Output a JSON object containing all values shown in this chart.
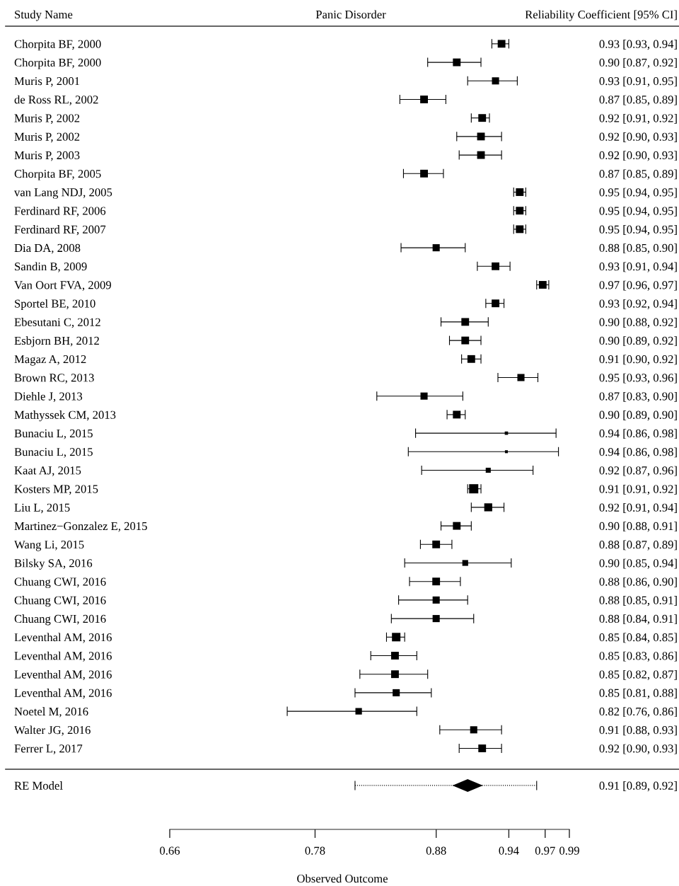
{
  "chart_data": {
    "type": "bubble",
    "orientation": "horizontal",
    "title": "Panic Disorder",
    "ylabel": "Study Name",
    "xlabel": "Observed Outcome",
    "annotations": [
      "Reliability Coefficient [95% CI]",
      "0.91 [0.89, 0.92]"
    ],
    "categories": [
      "Chorpita BF, 2000",
      "Chorpita BF, 2000",
      "Muris P, 2001",
      "de Ross RL, 2002",
      "Muris P, 2002",
      "Muris P, 2002",
      "Muris P, 2003",
      "Chorpita BF, 2005",
      "van Lang NDJ, 2005",
      "Ferdinard RF, 2006",
      "Ferdinard RF, 2007",
      "Dia DA, 2008",
      "Sandin B, 2009",
      "Van Oort FVA, 2009",
      "Sportel BE, 2010",
      "Ebesutani C, 2012",
      "Esbjorn BH, 2012",
      "Magaz A, 2012",
      "Brown RC, 2013",
      "Diehle J, 2013",
      "Mathyssek CM, 2013",
      "Bunaciu L, 2015",
      "Bunaciu L, 2015",
      "Kaat AJ, 2015",
      "Kosters MP, 2015",
      "Liu L, 2015",
      "Martinez−Gonzalez E, 2015",
      "Wang Li, 2015",
      "Bilsky SA, 2016",
      "Chuang CWI, 2016",
      "Chuang CWI, 2016",
      "Chuang CWI, 2016",
      "Leventhal AM, 2016",
      "Leventhal AM, 2016",
      "Leventhal AM, 2016",
      "Leventhal AM, 2016",
      "Noetel M, 2016",
      "Walter JG, 2016",
      "Ferrer L, 2017",
      null,
      "RE Model"
    ],
    "series": [
      {
        "color": "#000000",
        "marker": "square",
        "values": [
          0.934,
          0.897,
          0.929,
          0.87,
          0.918,
          0.917,
          0.917,
          0.87,
          0.949,
          0.949,
          0.949,
          0.88,
          0.929,
          0.968,
          0.929,
          0.904,
          0.904,
          0.909,
          0.95,
          0.87,
          0.897,
          0.938,
          0.938,
          0.923,
          0.911,
          0.923,
          0.897,
          0.88,
          0.904,
          0.88,
          0.88,
          0.88,
          0.847,
          0.846,
          0.846,
          0.847,
          0.816,
          0.911,
          0.918,
          null,
          null
        ],
        "errors": [
          [
            0.926,
            0.94
          ],
          [
            0.873,
            0.917
          ],
          [
            0.906,
            0.947
          ],
          [
            0.85,
            0.888
          ],
          [
            0.909,
            0.924
          ],
          [
            0.897,
            0.934
          ],
          [
            0.899,
            0.934
          ],
          [
            0.853,
            0.886
          ],
          [
            0.944,
            0.954
          ],
          [
            0.944,
            0.954
          ],
          [
            0.944,
            0.954
          ],
          [
            0.851,
            0.904
          ],
          [
            0.914,
            0.941
          ],
          [
            0.963,
            0.973
          ],
          [
            0.921,
            0.936
          ],
          [
            0.884,
            0.923
          ],
          [
            0.891,
            0.917
          ],
          [
            0.901,
            0.917
          ],
          [
            0.931,
            0.964
          ],
          [
            0.831,
            0.902
          ],
          [
            0.889,
            0.904
          ],
          [
            0.863,
            0.979
          ],
          [
            0.857,
            0.981
          ],
          [
            0.868,
            0.96
          ],
          [
            0.906,
            0.917
          ],
          [
            0.909,
            0.936
          ],
          [
            0.884,
            0.909
          ],
          [
            0.867,
            0.893
          ],
          [
            0.854,
            0.942
          ],
          [
            0.858,
            0.9
          ],
          [
            0.849,
            0.906
          ],
          [
            0.843,
            0.911
          ],
          [
            0.839,
            0.854
          ],
          [
            0.826,
            0.864
          ],
          [
            0.817,
            0.873
          ],
          [
            0.813,
            0.876
          ],
          [
            0.757,
            0.864
          ],
          [
            0.883,
            0.934
          ],
          [
            0.899,
            0.934
          ],
          null,
          null
        ],
        "sizes": [
          0.7,
          0.7,
          0.6,
          0.7,
          0.7,
          0.7,
          0.7,
          0.7,
          0.7,
          0.7,
          0.7,
          0.6,
          0.7,
          0.7,
          0.7,
          0.7,
          0.7,
          0.7,
          0.6,
          0.6,
          0.7,
          0.13,
          0.1,
          0.3,
          1,
          0.75,
          0.7,
          0.7,
          0.4,
          0.7,
          0.6,
          0.6,
          0.85,
          0.7,
          0.7,
          0.6,
          0.5,
          0.6,
          0.7,
          null,
          null
        ],
        "value_labels": [
          "0.93 [0.93, 0.94]",
          "0.90 [0.87, 0.92]",
          "0.93 [0.91, 0.95]",
          "0.87 [0.85, 0.89]",
          "0.92 [0.91, 0.92]",
          "0.92 [0.90, 0.93]",
          "0.92 [0.90, 0.93]",
          "0.87 [0.85, 0.89]",
          "0.95 [0.94, 0.95]",
          "0.95 [0.94, 0.95]",
          "0.95 [0.94, 0.95]",
          "0.88 [0.85, 0.90]",
          "0.93 [0.91, 0.94]",
          "0.97 [0.96, 0.97]",
          "0.93 [0.92, 0.94]",
          "0.90 [0.88, 0.92]",
          "0.90 [0.89, 0.92]",
          "0.91 [0.90, 0.92]",
          "0.95 [0.93, 0.96]",
          "0.87 [0.83, 0.90]",
          "0.90 [0.89, 0.90]",
          "0.94 [0.86, 0.98]",
          "0.94 [0.86, 0.98]",
          "0.92 [0.87, 0.96]",
          "0.91 [0.91, 0.92]",
          "0.92 [0.91, 0.94]",
          "0.90 [0.88, 0.91]",
          "0.88 [0.87, 0.89]",
          "0.90 [0.85, 0.94]",
          "0.88 [0.86, 0.90]",
          "0.88 [0.85, 0.91]",
          "0.88 [0.84, 0.91]",
          "0.85 [0.84, 0.85]",
          "0.85 [0.83, 0.86]",
          "0.85 [0.82, 0.87]",
          "0.85 [0.81, 0.88]",
          "0.82 [0.76, 0.86]",
          "0.91 [0.88, 0.93]",
          "0.92 [0.90, 0.93]",
          null,
          null
        ]
      },
      {
        "type": "scatter",
        "color": "#000000",
        "marker": "diamond",
        "line_style": "dotted",
        "values": [
          null,
          null,
          null,
          null,
          null,
          null,
          null,
          null,
          null,
          null,
          null,
          null,
          null,
          null,
          null,
          null,
          null,
          null,
          null,
          null,
          null,
          null,
          null,
          null,
          null,
          null,
          null,
          null,
          null,
          null,
          null,
          null,
          null,
          null,
          null,
          null,
          null,
          null,
          null,
          null,
          0.906
        ],
        "errors": [
          null,
          null,
          null,
          null,
          null,
          null,
          null,
          null,
          null,
          null,
          null,
          null,
          null,
          null,
          null,
          null,
          null,
          null,
          null,
          null,
          null,
          null,
          null,
          null,
          null,
          null,
          null,
          null,
          null,
          null,
          null,
          null,
          null,
          null,
          null,
          null,
          null,
          null,
          null,
          null,
          [
            0.813,
            0.963
          ]
        ]
      }
    ],
    "xlim": [
      0.66,
      0.99
    ],
    "xticks": [
      0.66,
      0.78,
      0.88,
      0.94,
      0.97,
      0.99
    ]
  }
}
